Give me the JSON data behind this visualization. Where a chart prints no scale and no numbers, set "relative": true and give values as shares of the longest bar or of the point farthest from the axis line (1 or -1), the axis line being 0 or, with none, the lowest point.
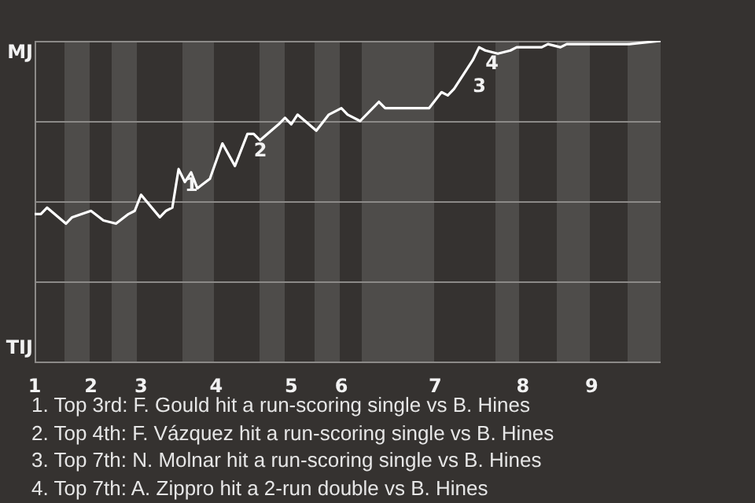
{
  "chart_data": {
    "type": "line",
    "relative": true,
    "categories": [
      "1",
      null,
      null,
      null,
      null,
      null,
      null,
      null,
      null,
      "2",
      null,
      null,
      null,
      null,
      null,
      null,
      null,
      "3",
      null,
      null,
      null,
      null,
      null,
      null,
      null,
      null,
      null,
      null,
      null,
      "4",
      null,
      null,
      null,
      null,
      null,
      null,
      null,
      null,
      null,
      null,
      null,
      "5",
      null,
      null,
      null,
      null,
      null,
      null,
      null,
      "6",
      null,
      null,
      null,
      null,
      null,
      null,
      null,
      null,
      null,
      null,
      null,
      null,
      null,
      null,
      "7",
      null,
      null,
      null,
      null,
      null,
      null,
      null,
      null,
      null,
      null,
      null,
      null,
      null,
      "8",
      null,
      null,
      null,
      null,
      null,
      null,
      null,
      null,
      null,
      null,
      "9",
      null,
      null,
      null,
      null,
      null,
      null,
      null,
      null,
      null,
      null,
      null
    ],
    "series": [
      {
        "color": "#ffffff",
        "values": [
          0.46,
          0.46,
          0.48,
          null,
          null,
          0.43,
          0.45,
          null,
          null,
          0.47,
          null,
          0.44,
          null,
          0.43,
          null,
          0.46,
          0.47,
          0.52,
          null,
          null,
          0.45,
          0.47,
          0.48,
          0.6,
          0.56,
          0.59,
          0.54,
          null,
          0.57,
          null,
          0.68,
          null,
          0.61,
          null,
          0.71,
          0.71,
          0.69,
          null,
          null,
          0.74,
          0.76,
          0.74,
          0.77,
          null,
          null,
          0.72,
          null,
          0.77,
          null,
          0.79,
          0.77,
          null,
          0.75,
          null,
          null,
          0.81,
          0.79,
          null,
          null,
          null,
          null,
          null,
          null,
          0.79,
          null,
          0.84,
          0.83,
          0.85,
          null,
          0.91,
          0.94,
          0.98,
          0.97,
          null,
          0.96,
          null,
          0.97,
          0.98,
          null,
          null,
          null,
          0.98,
          0.99,
          null,
          0.98,
          0.99,
          null,
          0.99,
          null,
          null,
          null,
          null,
          null,
          null,
          null,
          0.99,
          null,
          null,
          null,
          null,
          1
        ]
      }
    ],
    "grid": "y",
    "annotations": [
      "MJ",
      "TIJ",
      "1",
      "2",
      "3",
      "4",
      "1. Top 3rd: F. Gould hit a run-scoring single vs B. Hines",
      "2. Top 4th: F. Vázquez hit a run-scoring single vs B. Hines",
      "3. Top 7th: N. Molnar hit a run-scoring single vs B. Hines",
      "4. Top 7th: A. Zippro hit a 2-run double vs B. Hines"
    ]
  }
}
